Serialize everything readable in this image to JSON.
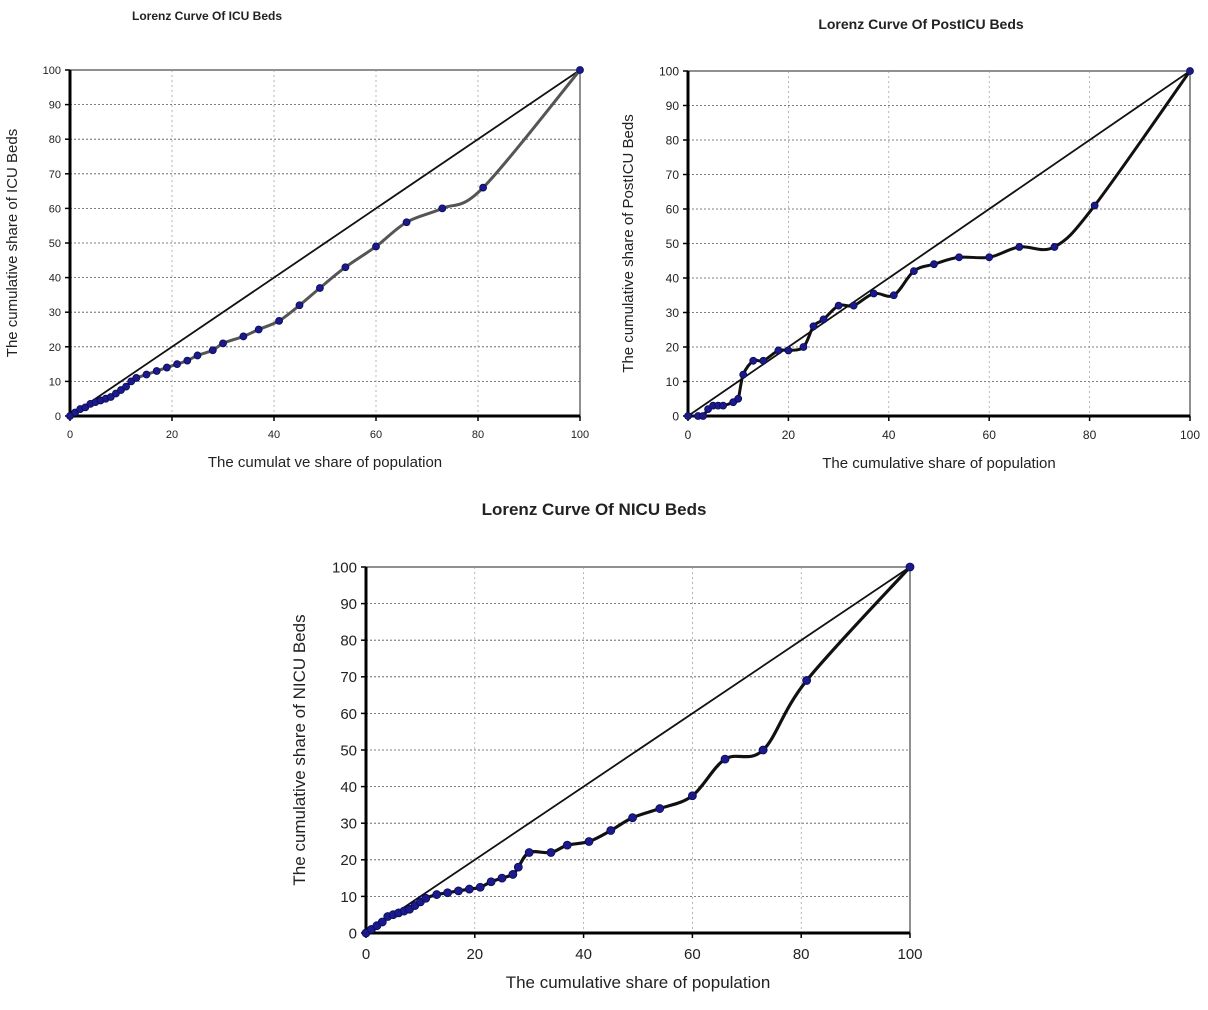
{
  "chart_data": [
    {
      "id": "icu",
      "type": "line",
      "title": "Lorenz Curve Of ICU Beds",
      "xlabel": "The cumulat ve share of population",
      "ylabel": "The cumulative share of ICU Beds",
      "xlim": [
        0,
        100
      ],
      "ylim": [
        0,
        100
      ],
      "xticks": [
        "0",
        "20",
        "40",
        "60",
        "80",
        "100"
      ],
      "yticks": [
        "0",
        "10",
        "20",
        "30",
        "40",
        "50",
        "60",
        "70",
        "80",
        "90",
        "100"
      ],
      "grid": "dashed",
      "legend": "none",
      "series": [
        {
          "role": "equality",
          "x": [
            0,
            100
          ],
          "y": [
            0,
            100
          ]
        },
        {
          "role": "lorenz",
          "x": [
            0,
            1,
            2,
            3,
            4,
            5,
            6,
            7,
            8,
            9,
            10,
            11,
            12,
            13,
            15,
            17,
            19,
            21,
            23,
            25,
            28,
            30,
            34,
            37,
            41,
            45,
            49,
            54,
            60,
            66,
            73,
            81,
            100
          ],
          "y": [
            0,
            1,
            2,
            2.5,
            3.5,
            4,
            4.5,
            5,
            5.5,
            6.5,
            7.5,
            8.5,
            10,
            11,
            12,
            13,
            14,
            15,
            16,
            17.5,
            19,
            21,
            23,
            25,
            27.5,
            32,
            37,
            43,
            49,
            56,
            60,
            66,
            100
          ]
        }
      ],
      "colors": {
        "line": "#555555",
        "equality": "#111111",
        "marker": "#1a1a8c"
      }
    },
    {
      "id": "posticu",
      "type": "line",
      "title": "Lorenz Curve Of PostICU Beds",
      "xlabel": "The cumulative share of population",
      "ylabel": "The cumulative share of PostICU Beds",
      "xlim": [
        0,
        100
      ],
      "ylim": [
        0,
        100
      ],
      "xticks": [
        "0",
        "20",
        "40",
        "60",
        "80",
        "100"
      ],
      "yticks": [
        "0",
        "10",
        "20",
        "30",
        "40",
        "50",
        "60",
        "70",
        "80",
        "90",
        "100"
      ],
      "grid": "dashed",
      "legend": "none",
      "series": [
        {
          "role": "equality",
          "x": [
            0,
            100
          ],
          "y": [
            0,
            100
          ]
        },
        {
          "role": "lorenz",
          "x": [
            0,
            2,
            3,
            4,
            5,
            6,
            7,
            9,
            10,
            11,
            13,
            15,
            18,
            20,
            23,
            25,
            27,
            30,
            33,
            37,
            41,
            45,
            49,
            54,
            60,
            66,
            73,
            81,
            100
          ],
          "y": [
            0,
            0,
            0,
            2,
            3,
            3,
            3,
            4,
            5,
            12,
            16,
            16,
            19,
            19,
            20,
            26,
            28,
            32,
            32,
            35.5,
            35,
            42,
            44,
            46,
            46,
            49,
            49,
            61,
            100
          ]
        }
      ],
      "colors": {
        "line": "#111111",
        "equality": "#111111",
        "marker": "#1a1a8c"
      }
    },
    {
      "id": "nicu",
      "type": "line",
      "title": "Lorenz Curve Of NICU Beds",
      "xlabel": "The cumulative share of population",
      "ylabel": "The cumulative share of NICU Beds",
      "xlim": [
        0,
        100
      ],
      "ylim": [
        0,
        100
      ],
      "xticks": [
        "0",
        "20",
        "40",
        "60",
        "80",
        "100"
      ],
      "yticks": [
        "0",
        "10",
        "20",
        "30",
        "40",
        "50",
        "60",
        "70",
        "80",
        "90",
        "100"
      ],
      "grid": "dashed",
      "legend": "none",
      "series": [
        {
          "role": "equality",
          "x": [
            0,
            100
          ],
          "y": [
            0,
            100
          ]
        },
        {
          "role": "lorenz",
          "x": [
            0,
            1,
            2,
            3,
            4,
            5,
            6,
            7,
            8,
            9,
            10,
            11,
            13,
            15,
            17,
            19,
            21,
            23,
            25,
            27,
            28,
            30,
            34,
            37,
            41,
            45,
            49,
            54,
            60,
            66,
            73,
            81,
            100
          ],
          "y": [
            0,
            1,
            2,
            3,
            4.5,
            5,
            5.5,
            6,
            6.5,
            7.5,
            8.5,
            9.5,
            10.5,
            11,
            11.5,
            12,
            12.5,
            14,
            15,
            16,
            18,
            22,
            22,
            24,
            25,
            28,
            31.5,
            34,
            37.5,
            47.5,
            50,
            69,
            100
          ]
        }
      ],
      "colors": {
        "line": "#111111",
        "equality": "#111111",
        "marker": "#1a1a8c"
      }
    }
  ]
}
